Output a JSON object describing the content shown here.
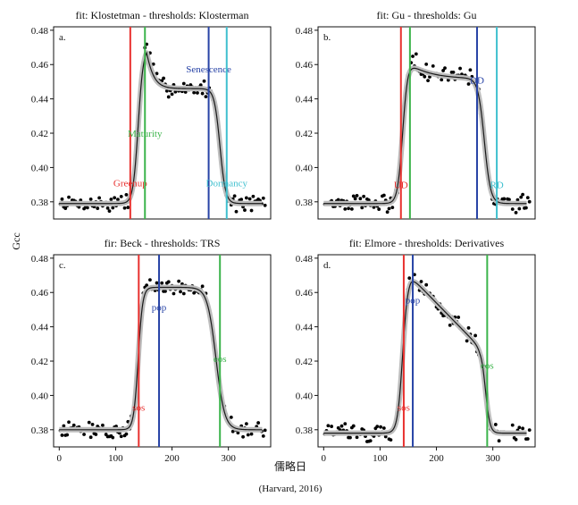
{
  "figure": {
    "ylabel": "Gcc",
    "xlabel": "儒略日",
    "source": "(Harvard, 2016)"
  },
  "colors": {
    "red": "#e8312f",
    "green": "#3cb44b",
    "blue": "#2743a6",
    "cyan": "#3fc0cf",
    "model_band": "#bdbdbd",
    "model_line": "#1a1a1a",
    "points": "#000000"
  },
  "chart_data": [
    {
      "type": "scatter",
      "panel_label": "a.",
      "title": "fit: Klostetman - thresholds: Klosterman",
      "xlim": [
        -10,
        375
      ],
      "ylim": [
        0.37,
        0.482
      ],
      "x_ticks": [],
      "y_ticks": [
        "0.48",
        "0.46",
        "0.44",
        "0.42",
        "0.40",
        "0.38"
      ],
      "y_tick_values": [
        0.48,
        0.46,
        0.44,
        0.42,
        0.4,
        0.38
      ],
      "model": {
        "base": 0.379,
        "rise_mid": 140,
        "rise_k": 0.22,
        "peak": 0.47,
        "peak_day": 155,
        "plateau_end": 0.446,
        "fall_mid": 285,
        "fall_k": 0.2,
        "decay": 0.09
      },
      "thresholds": [
        {
          "label": "Greenup",
          "day": 126,
          "color": "red",
          "label_y": 0.389
        },
        {
          "label": "Maturity",
          "day": 152,
          "color": "green",
          "label_y": 0.418
        },
        {
          "label": "Senescence",
          "day": 265,
          "color": "blue",
          "label_y": 0.4555
        },
        {
          "label": "Dormancy",
          "day": 297,
          "color": "cyan",
          "label_y": 0.389
        }
      ]
    },
    {
      "type": "scatter",
      "panel_label": "b.",
      "title": "fit: Gu - thresholds: Gu",
      "xlim": [
        -10,
        375
      ],
      "ylim": [
        0.37,
        0.482
      ],
      "x_ticks": [],
      "y_ticks": [
        "0.48",
        "0.46",
        "0.44",
        "0.42",
        "0.40",
        "0.38"
      ],
      "y_tick_values": [
        0.48,
        0.46,
        0.44,
        0.42,
        0.4,
        0.38
      ],
      "model": {
        "base": 0.379,
        "rise_mid": 140,
        "rise_k": 0.22,
        "peak": 0.461,
        "peak_day": 150,
        "plateau_end": 0.452,
        "fall_mid": 285,
        "fall_k": 0.18,
        "decay": 0.3
      },
      "thresholds": [
        {
          "label": "UD",
          "day": 137,
          "color": "red",
          "label_y": 0.388
        },
        {
          "label": "",
          "day": 153,
          "color": "green",
          "label_y": 0.42
        },
        {
          "label": "DD",
          "day": 272,
          "color": "blue",
          "label_y": 0.449
        },
        {
          "label": "RD",
          "day": 307,
          "color": "cyan",
          "label_y": 0.388
        }
      ]
    },
    {
      "type": "scatter",
      "panel_label": "c.",
      "title": "fir: Beck - thresholds: TRS",
      "xlim": [
        -10,
        375
      ],
      "ylim": [
        0.37,
        0.482
      ],
      "x_ticks": [
        "0",
        "100",
        "200",
        "300"
      ],
      "x_tick_values": [
        0,
        100,
        200,
        300
      ],
      "y_ticks": [
        "0.48",
        "0.46",
        "0.44",
        "0.42",
        "0.40",
        "0.38"
      ],
      "y_tick_values": [
        0.48,
        0.46,
        0.44,
        0.42,
        0.4,
        0.38
      ],
      "model": {
        "base": 0.38,
        "rise_mid": 140,
        "rise_k": 0.25,
        "peak": 0.463,
        "peak_day": 150,
        "plateau_end": 0.463,
        "fall_mid": 278,
        "fall_k": 0.13,
        "decay": 0
      },
      "thresholds": [
        {
          "label": "sos",
          "day": 141,
          "color": "red",
          "label_y": 0.391
        },
        {
          "label": "pop",
          "day": 177,
          "color": "blue",
          "label_y": 0.4495
        },
        {
          "label": "eos",
          "day": 285,
          "color": "green",
          "label_y": 0.4195
        }
      ]
    },
    {
      "type": "scatter",
      "panel_label": "d.",
      "title": "fit: Elmore - thresholds: Derivatives",
      "xlim": [
        -10,
        375
      ],
      "ylim": [
        0.37,
        0.482
      ],
      "x_ticks": [
        "0",
        "100",
        "200",
        "300"
      ],
      "x_tick_values": [
        0,
        100,
        200,
        300
      ],
      "y_ticks": [
        "0.48",
        "0.46",
        "0.44",
        "0.42",
        "0.40",
        "0.38"
      ],
      "y_tick_values": [
        0.48,
        0.46,
        0.44,
        0.42,
        0.4,
        0.38
      ],
      "model": {
        "base": 0.378,
        "rise_mid": 140,
        "rise_k": 0.22,
        "peak": 0.469,
        "peak_day": 155,
        "plateau_end": 0.428,
        "fall_mid": 287,
        "fall_k": 0.25,
        "decay": 0
      },
      "thresholds": [
        {
          "label": "sos",
          "day": 142,
          "color": "red",
          "label_y": 0.391
        },
        {
          "label": "pop",
          "day": 158,
          "color": "blue",
          "label_y": 0.4535
        },
        {
          "label": "eos",
          "day": 290,
          "color": "green",
          "label_y": 0.4155
        }
      ]
    }
  ]
}
